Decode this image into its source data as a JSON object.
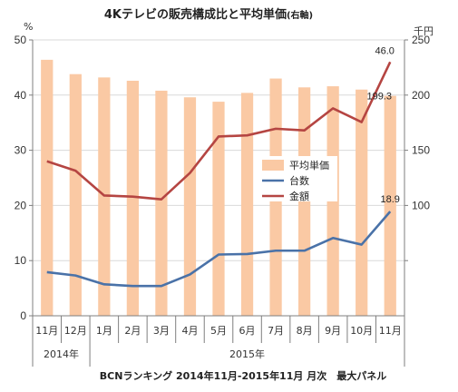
{
  "chart_data": {
    "type": "bar",
    "title": "4Kテレビの販売構成比と平均単価",
    "title_note": "(右軸)",
    "left_unit": "%",
    "right_unit": "千円",
    "source": "BCNランキング 2014年11月-2015年11月 月次　最大パネル",
    "left_axis": {
      "min": 0,
      "max": 50,
      "ticks": [
        0,
        10,
        20,
        30,
        40,
        50
      ]
    },
    "right_axis": {
      "min": 0,
      "max": 250,
      "ticks": [
        "",
        100,
        150,
        200,
        250
      ]
    },
    "categories": [
      "11月",
      "12月",
      "1月",
      "2月",
      "3月",
      "4月",
      "5月",
      "6月",
      "7月",
      "8月",
      "9月",
      "10月",
      "11月"
    ],
    "year_groups": [
      {
        "label": "2014年",
        "count": 2
      },
      {
        "label": "2015年",
        "count": 11
      }
    ],
    "series": [
      {
        "name": "平均単価",
        "kind": "bar",
        "axis": "right",
        "color": "#fac9a4",
        "values": [
          232,
          219,
          216,
          213,
          204,
          198,
          194,
          202,
          215,
          207,
          208,
          205,
          199.3
        ]
      },
      {
        "name": "台数",
        "kind": "line",
        "axis": "left",
        "color": "#4a72a8",
        "values": [
          7.9,
          7.3,
          5.7,
          5.4,
          5.4,
          7.5,
          11.1,
          11.2,
          11.8,
          11.8,
          14.1,
          12.9,
          18.9
        ]
      },
      {
        "name": "金額",
        "kind": "line",
        "axis": "left",
        "color": "#b54542",
        "values": [
          28,
          26.3,
          21.8,
          21.6,
          21.1,
          25.9,
          32.5,
          32.7,
          33.9,
          33.6,
          37.6,
          35.1,
          46.0
        ]
      }
    ],
    "data_labels": [
      {
        "series": "金額",
        "index": 12,
        "text": "46.0"
      },
      {
        "series": "平均単価",
        "index": 12,
        "text": "199.3"
      },
      {
        "series": "台数",
        "index": 12,
        "text": "18.9"
      }
    ],
    "legend": [
      "平均単価",
      "台数",
      "金額"
    ],
    "legend_position": "center-right",
    "grid": true
  }
}
